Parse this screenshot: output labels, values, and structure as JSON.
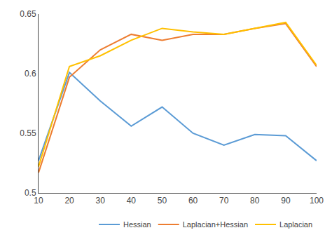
{
  "chart_data": {
    "type": "line",
    "x": [
      10,
      20,
      30,
      40,
      50,
      60,
      70,
      80,
      90,
      100
    ],
    "series": [
      {
        "name": "Hessian",
        "color": "#5b9bd5",
        "values": [
          0.527,
          0.601,
          0.577,
          0.556,
          0.572,
          0.55,
          0.54,
          0.549,
          0.548,
          0.527
        ]
      },
      {
        "name": "Laplacian+Hessian",
        "color": "#ed7d31",
        "values": [
          0.517,
          0.597,
          0.62,
          0.633,
          0.628,
          0.633,
          0.633,
          0.638,
          0.642,
          0.606
        ]
      },
      {
        "name": "Laplacian",
        "color": "#ffc000",
        "values": [
          0.522,
          0.606,
          0.615,
          0.628,
          0.638,
          0.635,
          0.633,
          0.638,
          0.643,
          0.607
        ]
      }
    ],
    "xlim": [
      10,
      100
    ],
    "ylim": [
      0.5,
      0.65
    ],
    "xticks": [
      10,
      20,
      30,
      40,
      50,
      60,
      70,
      80,
      90,
      100
    ],
    "yticks": [
      0.5,
      0.55,
      0.6,
      0.65
    ],
    "grid": false,
    "legend": "lower right"
  }
}
